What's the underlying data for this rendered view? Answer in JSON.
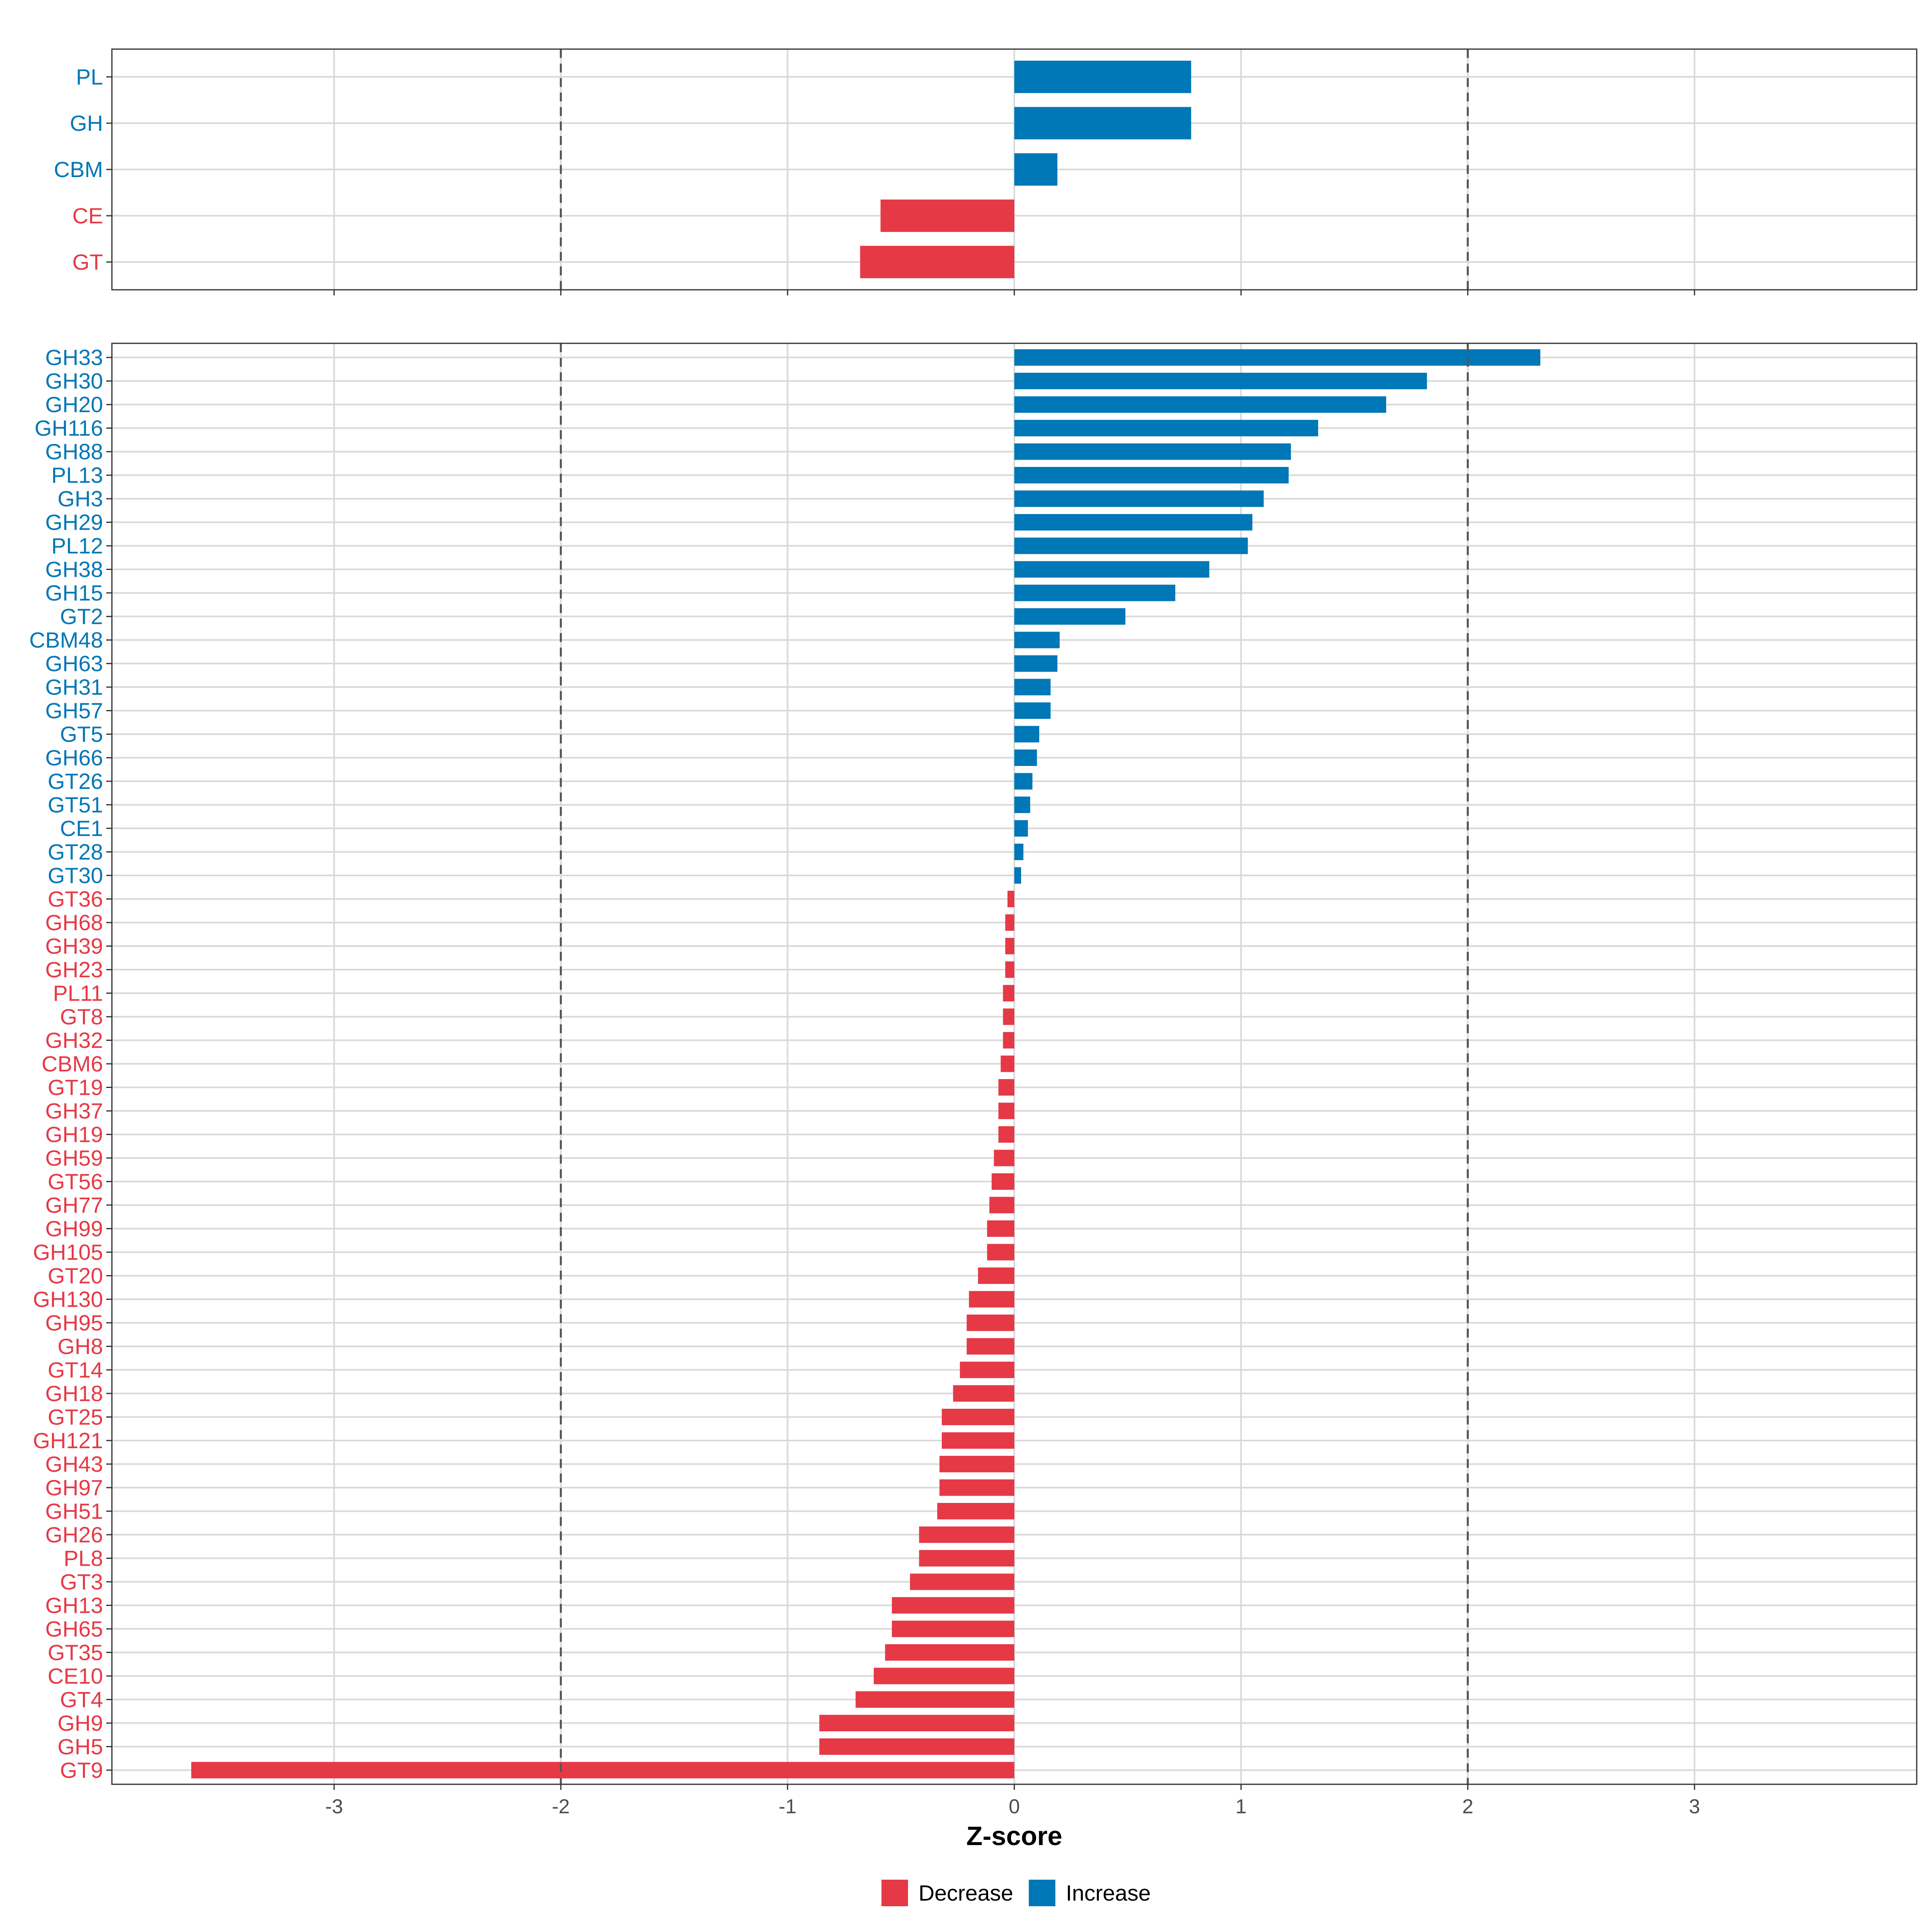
{
  "colors": {
    "decrease": "#e63946",
    "increase": "#0077b6",
    "grid": "#d9d9d9",
    "reference_line": "#555555",
    "panel_border": "#333333"
  },
  "chart_data": [
    {
      "type": "bar",
      "orientation": "horizontal",
      "panel": "top",
      "categories": [
        "PL",
        "GH",
        "CBM",
        "CE",
        "GT"
      ],
      "values": [
        0.78,
        0.78,
        0.19,
        -0.59,
        -0.68
      ],
      "xlim": [
        -3.98,
        3.98
      ],
      "reference_lines": [
        -2,
        2
      ],
      "xticks": [
        -3,
        -2,
        -1,
        0,
        1,
        2,
        3
      ]
    },
    {
      "type": "bar",
      "orientation": "horizontal",
      "panel": "bottom",
      "categories": [
        "GH33",
        "GH30",
        "GH20",
        "GH116",
        "GH88",
        "PL13",
        "GH3",
        "GH29",
        "PL12",
        "GH38",
        "GH15",
        "GT2",
        "CBM48",
        "GH63",
        "GH31",
        "GH57",
        "GT5",
        "GH66",
        "GT26",
        "GT51",
        "CE1",
        "GT28",
        "GT30",
        "GT36",
        "GH68",
        "GH39",
        "GH23",
        "PL11",
        "GT8",
        "GH32",
        "CBM6",
        "GT19",
        "GH37",
        "GH19",
        "GH59",
        "GT56",
        "GH77",
        "GH99",
        "GH105",
        "GT20",
        "GH130",
        "GH95",
        "GH8",
        "GT14",
        "GH18",
        "GT25",
        "GH121",
        "GH43",
        "GH97",
        "GH51",
        "GH26",
        "PL8",
        "GT3",
        "GH13",
        "GH65",
        "GT35",
        "CE10",
        "GT4",
        "GH9",
        "GH5",
        "GT9"
      ],
      "values": [
        2.32,
        1.82,
        1.64,
        1.34,
        1.22,
        1.21,
        1.1,
        1.05,
        1.03,
        0.86,
        0.71,
        0.49,
        0.2,
        0.19,
        0.16,
        0.16,
        0.11,
        0.1,
        0.08,
        0.07,
        0.06,
        0.04,
        0.03,
        -0.03,
        -0.04,
        -0.04,
        -0.04,
        -0.05,
        -0.05,
        -0.05,
        -0.06,
        -0.07,
        -0.07,
        -0.07,
        -0.09,
        -0.1,
        -0.11,
        -0.12,
        -0.12,
        -0.16,
        -0.2,
        -0.21,
        -0.21,
        -0.24,
        -0.27,
        -0.32,
        -0.32,
        -0.33,
        -0.33,
        -0.34,
        -0.42,
        -0.42,
        -0.46,
        -0.54,
        -0.54,
        -0.57,
        -0.62,
        -0.7,
        -0.86,
        -0.86,
        -3.63
      ],
      "xlim": [
        -3.98,
        3.98
      ],
      "reference_lines": [
        -2,
        2
      ],
      "xticks": [
        -3,
        -2,
        -1,
        0,
        1,
        2,
        3
      ],
      "xlabel": "Z-score"
    }
  ],
  "legend": {
    "placement": "bottom-center",
    "items": [
      {
        "label": "Decrease",
        "color_key": "decrease"
      },
      {
        "label": "Increase",
        "color_key": "increase"
      }
    ]
  }
}
